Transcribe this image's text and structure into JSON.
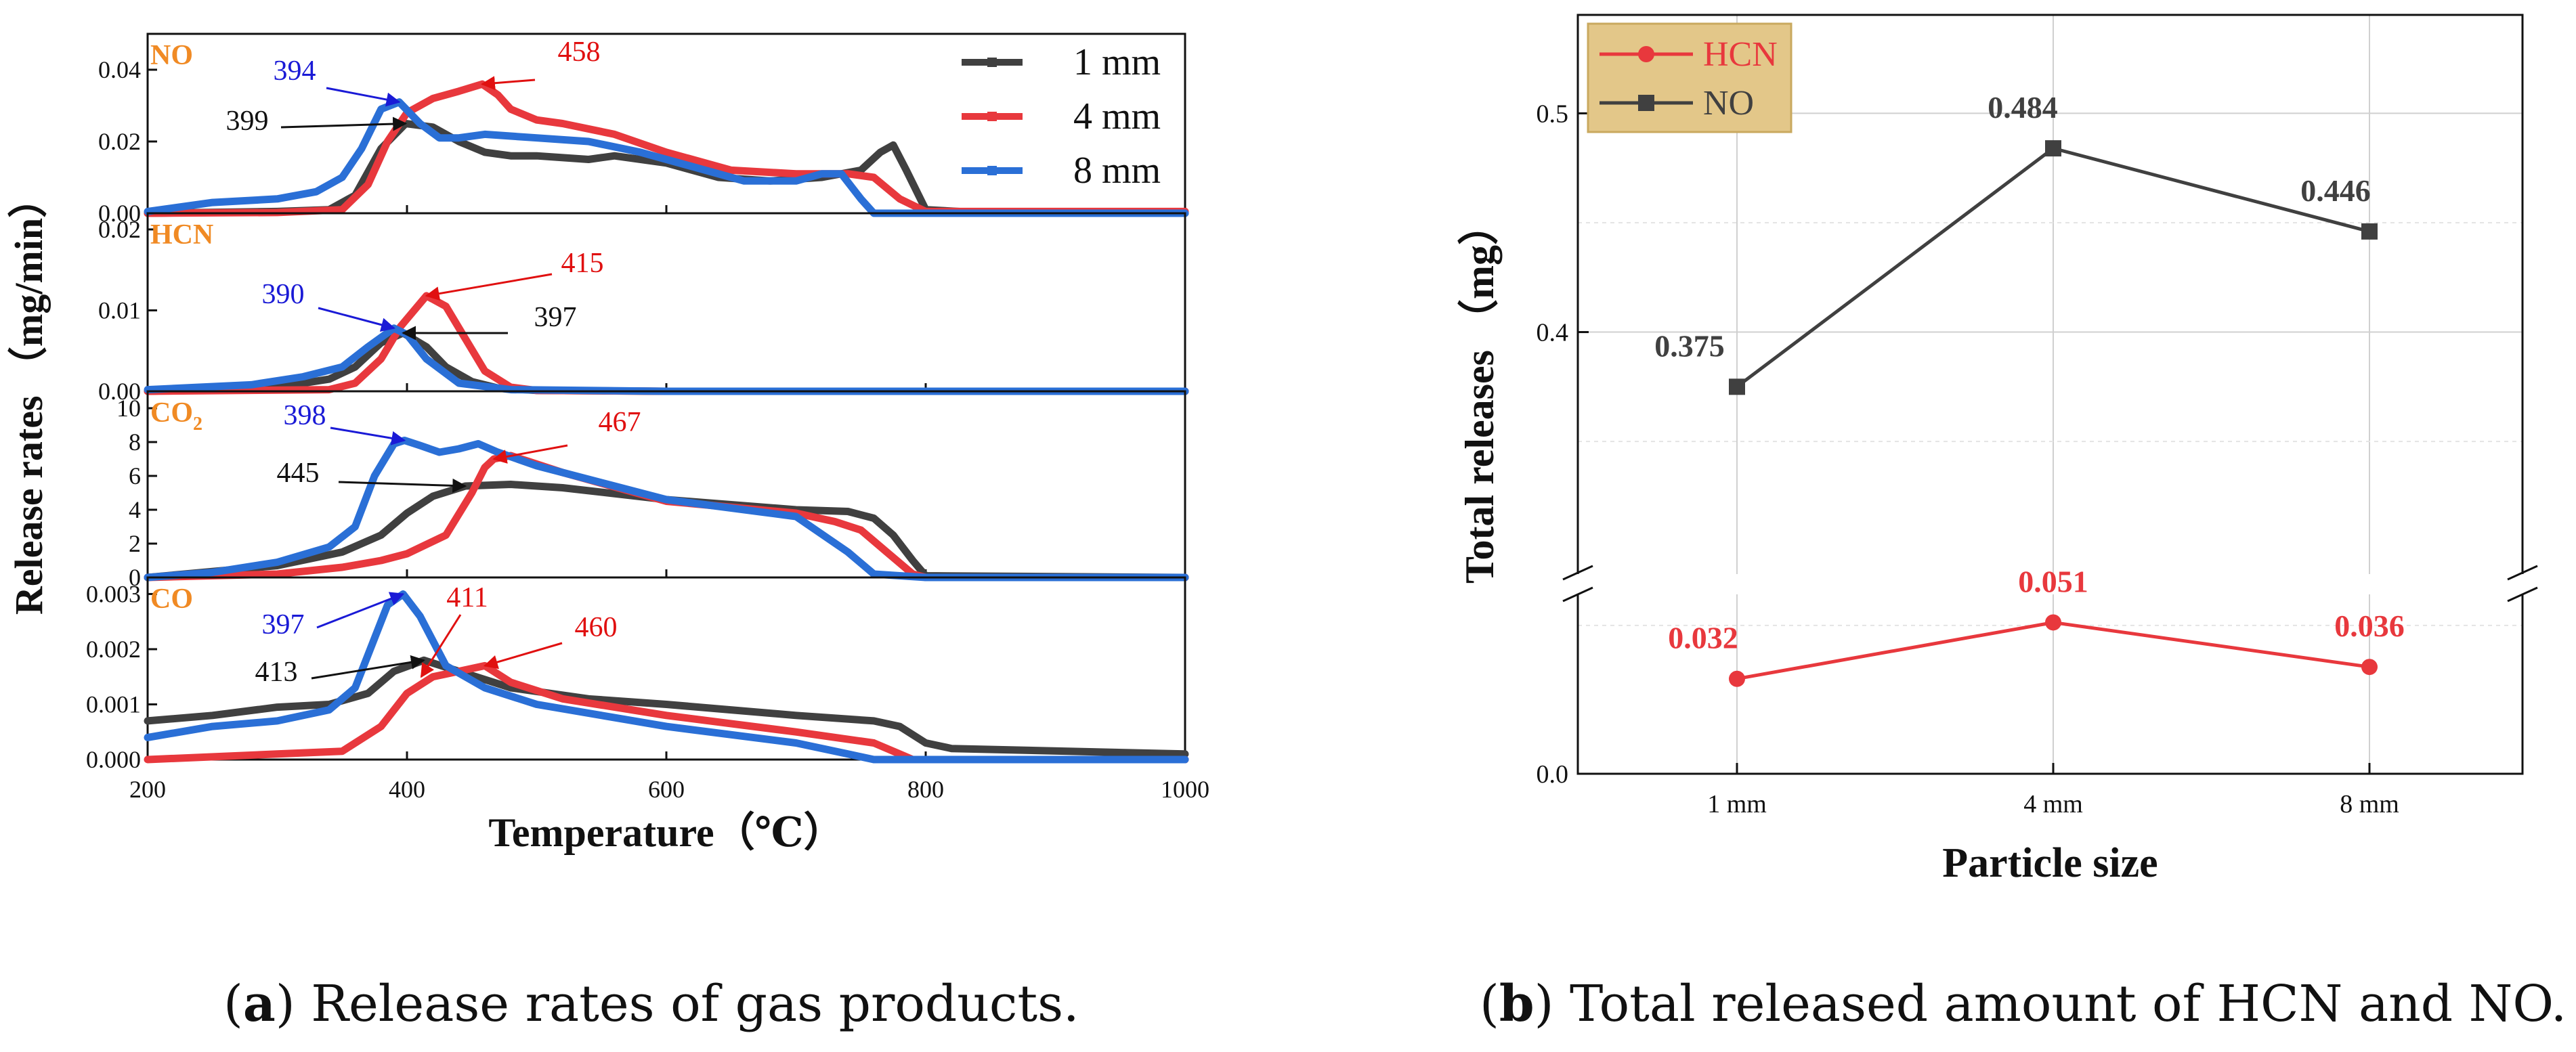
{
  "colors": {
    "mm1": "#404040",
    "mm4": "#e8383d",
    "mm8": "#2a6fd6",
    "panel_label": "#f08a24",
    "annot_blue": "#1a1ad6",
    "annot_red": "#e01010",
    "annot_black": "#111111",
    "legend_bg": "#e3c789",
    "legend_border": "#c9a95f"
  },
  "chart_data": [
    {
      "type": "line",
      "panel": "a",
      "xlabel": "Temperature（℃）",
      "ylabel": "Release rates （mg/min）",
      "xlim": [
        200,
        1000
      ],
      "xticks": [
        "200",
        "400",
        "600",
        "800",
        "1000"
      ],
      "legend": {
        "position": "top-right",
        "entries": [
          "1 mm",
          "4 mm",
          "8 mm"
        ]
      },
      "subplots": [
        {
          "label": "NO",
          "ylim": [
            0,
            0.05
          ],
          "yticks": [
            "0.00",
            "0.02",
            "0.04"
          ],
          "series": [
            {
              "name": "1 mm",
              "x": [
                200,
                300,
                340,
                360,
                380,
                399,
                420,
                440,
                460,
                480,
                500,
                540,
                560,
                600,
                640,
                680,
                720,
                750,
                765,
                775,
                785,
                800,
                850,
                1000
              ],
              "y": [
                0.0,
                0.0005,
                0.001,
                0.005,
                0.018,
                0.025,
                0.024,
                0.02,
                0.017,
                0.016,
                0.016,
                0.015,
                0.016,
                0.014,
                0.01,
                0.009,
                0.01,
                0.012,
                0.017,
                0.019,
                0.012,
                0.001,
                0.0,
                0.0
              ]
            },
            {
              "name": "4 mm",
              "x": [
                200,
                300,
                350,
                370,
                385,
                400,
                420,
                440,
                458,
                470,
                480,
                500,
                520,
                560,
                600,
                650,
                700,
                740,
                760,
                780,
                800,
                1000
              ],
              "y": [
                0.0,
                0.0002,
                0.001,
                0.008,
                0.02,
                0.028,
                0.032,
                0.034,
                0.036,
                0.033,
                0.029,
                0.026,
                0.025,
                0.022,
                0.017,
                0.012,
                0.011,
                0.011,
                0.01,
                0.004,
                0.0005,
                0.0005
              ]
            },
            {
              "name": "8 mm",
              "x": [
                200,
                250,
                300,
                330,
                350,
                365,
                380,
                394,
                410,
                425,
                440,
                460,
                500,
                540,
                580,
                620,
                660,
                700,
                720,
                735,
                750,
                760,
                1000
              ],
              "y": [
                0.0005,
                0.003,
                0.004,
                0.006,
                0.01,
                0.018,
                0.029,
                0.031,
                0.025,
                0.021,
                0.021,
                0.022,
                0.021,
                0.02,
                0.017,
                0.013,
                0.009,
                0.009,
                0.011,
                0.011,
                0.004,
                0.0,
                0.0
              ]
            }
          ],
          "annotations": [
            {
              "text": "394",
              "x": 394,
              "y": 0.031,
              "color": "blue"
            },
            {
              "text": "399",
              "x": 399,
              "y": 0.025,
              "color": "black"
            },
            {
              "text": "458",
              "x": 458,
              "y": 0.036,
              "color": "red"
            }
          ]
        },
        {
          "label": "HCN",
          "ylim": [
            0,
            0.022
          ],
          "yticks": [
            "0.00",
            "0.01",
            "0.02"
          ],
          "series": [
            {
              "name": "1 mm",
              "x": [
                200,
                300,
                340,
                360,
                380,
                397,
                415,
                430,
                450,
                470,
                500,
                600,
                1000
              ],
              "y": [
                0.0,
                0.0005,
                0.0015,
                0.003,
                0.006,
                0.0072,
                0.0055,
                0.003,
                0.0012,
                0.0004,
                0.0001,
                0.0,
                0.0
              ]
            },
            {
              "name": "4 mm",
              "x": [
                200,
                340,
                360,
                380,
                395,
                415,
                430,
                445,
                460,
                480,
                500,
                600,
                1000
              ],
              "y": [
                0.0,
                0.0002,
                0.001,
                0.004,
                0.008,
                0.0118,
                0.0105,
                0.0065,
                0.0025,
                0.0005,
                0.0001,
                0.0,
                0.0
              ]
            },
            {
              "name": "8 mm",
              "x": [
                200,
                280,
                320,
                350,
                370,
                390,
                400,
                415,
                440,
                480,
                600,
                1000
              ],
              "y": [
                0.0002,
                0.0008,
                0.0018,
                0.003,
                0.0055,
                0.0078,
                0.007,
                0.004,
                0.001,
                0.0002,
                0.0,
                0.0
              ]
            }
          ],
          "annotations": [
            {
              "text": "390",
              "x": 390,
              "y": 0.0078,
              "color": "blue"
            },
            {
              "text": "415",
              "x": 415,
              "y": 0.0118,
              "color": "red"
            },
            {
              "text": "397",
              "x": 397,
              "y": 0.0072,
              "color": "black"
            }
          ]
        },
        {
          "label": "CO2",
          "ylim": [
            0,
            11
          ],
          "yticks": [
            "0",
            "2",
            "4",
            "6",
            "8",
            "10"
          ],
          "series": [
            {
              "name": "1 mm",
              "x": [
                200,
                300,
                350,
                380,
                400,
                420,
                445,
                480,
                520,
                600,
                700,
                740,
                760,
                775,
                790,
                800,
                1000
              ],
              "y": [
                0.0,
                0.7,
                1.5,
                2.5,
                3.8,
                4.8,
                5.4,
                5.5,
                5.3,
                4.6,
                4.0,
                3.9,
                3.5,
                2.5,
                1.0,
                0.1,
                0.0
              ]
            },
            {
              "name": "4 mm",
              "x": [
                200,
                300,
                350,
                380,
                400,
                430,
                450,
                460,
                467,
                480,
                520,
                600,
                700,
                730,
                750,
                770,
                790,
                800,
                1000
              ],
              "y": [
                0.0,
                0.2,
                0.6,
                1.0,
                1.4,
                2.5,
                5.0,
                6.5,
                7.0,
                7.2,
                6.2,
                4.5,
                3.8,
                3.3,
                2.8,
                1.5,
                0.2,
                0.0,
                0.0
              ]
            },
            {
              "name": "8 mm",
              "x": [
                200,
                250,
                300,
                340,
                360,
                375,
                390,
                398,
                410,
                425,
                440,
                455,
                470,
                500,
                560,
                600,
                700,
                740,
                760,
                800,
                1000
              ],
              "y": [
                0.0,
                0.3,
                0.9,
                1.8,
                3.0,
                6.0,
                7.9,
                8.1,
                7.8,
                7.4,
                7.6,
                7.9,
                7.4,
                6.6,
                5.4,
                4.6,
                3.6,
                1.5,
                0.2,
                0.0,
                0.0
              ]
            }
          ],
          "annotations": [
            {
              "text": "398",
              "x": 398,
              "y": 8.1,
              "color": "blue"
            },
            {
              "text": "445",
              "x": 445,
              "y": 5.4,
              "color": "black"
            },
            {
              "text": "467",
              "x": 467,
              "y": 7.0,
              "color": "red"
            }
          ]
        },
        {
          "label": "CO",
          "ylim": [
            0,
            0.0033
          ],
          "yticks": [
            "0.000",
            "0.001",
            "0.002",
            "0.003"
          ],
          "series": [
            {
              "name": "1 mm",
              "x": [
                200,
                250,
                300,
                340,
                370,
                390,
                413,
                440,
                480,
                540,
                600,
                700,
                760,
                780,
                800,
                820,
                1000
              ],
              "y": [
                0.0007,
                0.0008,
                0.00095,
                0.001,
                0.0012,
                0.0016,
                0.0018,
                0.0016,
                0.0013,
                0.0011,
                0.001,
                0.0008,
                0.0007,
                0.0006,
                0.0003,
                0.0002,
                0.0001
              ]
            },
            {
              "name": "4 mm",
              "x": [
                200,
                300,
                350,
                380,
                400,
                420,
                440,
                460,
                480,
                520,
                600,
                700,
                760,
                780,
                790,
                1000
              ],
              "y": [
                0.0,
                0.0001,
                0.00015,
                0.0006,
                0.0012,
                0.0015,
                0.0016,
                0.0017,
                0.0014,
                0.0011,
                0.0008,
                0.0005,
                0.0003,
                0.0001,
                0.0,
                0.0
              ]
            },
            {
              "name": "8 mm",
              "x": [
                200,
                250,
                300,
                340,
                360,
                375,
                385,
                397,
                410,
                430,
                460,
                500,
                600,
                700,
                740,
                760,
                1000
              ],
              "y": [
                0.0004,
                0.0006,
                0.0007,
                0.0009,
                0.0013,
                0.0022,
                0.0028,
                0.003,
                0.0026,
                0.0017,
                0.0013,
                0.001,
                0.0006,
                0.0003,
                0.0001,
                0.0,
                0.0
              ]
            }
          ],
          "annotations": [
            {
              "text": "397",
              "x": 397,
              "y": 0.003,
              "color": "blue"
            },
            {
              "text": "411",
              "x": 411,
              "y": 0.0015,
              "color": "red"
            },
            {
              "text": "413",
              "x": 413,
              "y": 0.0018,
              "color": "black"
            },
            {
              "text": "460",
              "x": 460,
              "y": 0.0017,
              "color": "red"
            }
          ]
        }
      ]
    },
    {
      "type": "line",
      "panel": "b",
      "xlabel": "Particle size",
      "ylabel": "Total releases （mg）",
      "categories": [
        "1 mm",
        "4 mm",
        "8 mm"
      ],
      "yticks": [
        "0.0",
        "0.4",
        "0.5"
      ],
      "y_break": {
        "lower": [
          0.0,
          0.06
        ],
        "upper": [
          0.29,
          0.545
        ]
      },
      "grid": true,
      "legend": {
        "position": "top-left",
        "entries": [
          "HCN",
          "NO"
        ]
      },
      "series": [
        {
          "name": "HCN",
          "marker": "circle",
          "values": [
            0.032,
            0.051,
            0.036
          ],
          "labels": [
            "0.032",
            "0.051",
            "0.036"
          ]
        },
        {
          "name": "NO",
          "marker": "square",
          "values": [
            0.375,
            0.484,
            0.446
          ],
          "labels": [
            "0.375",
            "0.484",
            "0.446"
          ]
        }
      ]
    }
  ],
  "captions": {
    "a_letter": "a",
    "a_text": " Release rates of gas products.",
    "b_letter": "b",
    "b_text": " Total released amount of HCN and NO."
  }
}
